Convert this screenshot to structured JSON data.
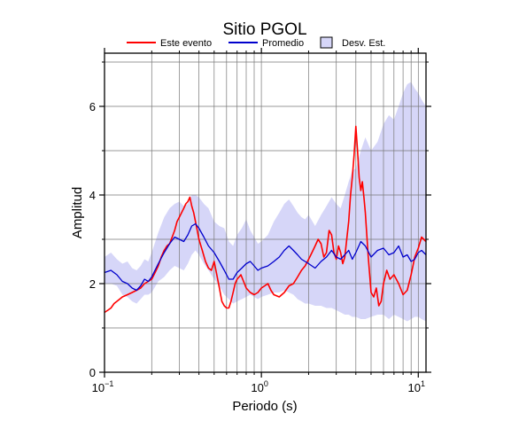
{
  "chart_data": {
    "type": "line",
    "title": "Sitio PGOL",
    "xlabel": "Periodo (s)",
    "ylabel": "Amplitud",
    "x_scale": "log",
    "xlim": [
      0.1,
      11.2
    ],
    "ylim": [
      0,
      7.2
    ],
    "x_ticks": [
      {
        "value": 0.1,
        "base": "10",
        "exp": "−1"
      },
      {
        "value": 1,
        "base": "10",
        "exp": "0"
      },
      {
        "value": 10,
        "base": "10",
        "exp": "1"
      }
    ],
    "y_ticks": [
      {
        "value": 0,
        "label": "0"
      },
      {
        "value": 2,
        "label": "2"
      },
      {
        "value": 4,
        "label": "4"
      },
      {
        "value": 6,
        "label": "6"
      }
    ],
    "grid": true,
    "legend_position": "top",
    "legend": [
      {
        "label": "Este evento",
        "kind": "line",
        "color": "#ff0000"
      },
      {
        "label": "Promedio",
        "kind": "line",
        "color": "#0000cc"
      },
      {
        "label": "Desv. Est.",
        "kind": "band",
        "color": "#d6d6f8"
      }
    ],
    "series": [
      {
        "name": "Este evento",
        "color": "#ff0000",
        "x": [
          0.1,
          0.105,
          0.11,
          0.115,
          0.12,
          0.13,
          0.14,
          0.15,
          0.16,
          0.17,
          0.18,
          0.19,
          0.2,
          0.21,
          0.22,
          0.23,
          0.24,
          0.25,
          0.26,
          0.27,
          0.28,
          0.29,
          0.3,
          0.31,
          0.32,
          0.33,
          0.34,
          0.35,
          0.36,
          0.37,
          0.38,
          0.39,
          0.4,
          0.42,
          0.44,
          0.46,
          0.48,
          0.5,
          0.52,
          0.54,
          0.56,
          0.58,
          0.6,
          0.62,
          0.64,
          0.66,
          0.68,
          0.7,
          0.72,
          0.74,
          0.77,
          0.8,
          0.85,
          0.9,
          0.95,
          1.0,
          1.05,
          1.1,
          1.15,
          1.2,
          1.3,
          1.4,
          1.5,
          1.6,
          1.7,
          1.8,
          1.9,
          2.0,
          2.1,
          2.2,
          2.3,
          2.4,
          2.5,
          2.6,
          2.7,
          2.8,
          2.9,
          3.0,
          3.1,
          3.2,
          3.3,
          3.4,
          3.5,
          3.6,
          3.7,
          3.8,
          3.9,
          4.0,
          4.1,
          4.2,
          4.3,
          4.4,
          4.5,
          4.6,
          4.8,
          5.0,
          5.2,
          5.4,
          5.6,
          5.8,
          6.0,
          6.3,
          6.6,
          7.0,
          7.5,
          8.0,
          8.5,
          9.0,
          9.5,
          10.0,
          10.5,
          11.2
        ],
        "y": [
          1.35,
          1.4,
          1.45,
          1.55,
          1.6,
          1.7,
          1.75,
          1.8,
          1.85,
          1.9,
          2.0,
          2.05,
          2.1,
          2.25,
          2.4,
          2.6,
          2.75,
          2.85,
          2.9,
          3.05,
          3.2,
          3.4,
          3.5,
          3.6,
          3.7,
          3.8,
          3.85,
          3.95,
          3.75,
          3.6,
          3.4,
          3.2,
          3.0,
          2.75,
          2.5,
          2.35,
          2.3,
          2.5,
          2.2,
          1.9,
          1.6,
          1.5,
          1.45,
          1.45,
          1.6,
          1.8,
          2.0,
          2.1,
          2.15,
          2.2,
          2.05,
          1.9,
          1.8,
          1.75,
          1.8,
          1.9,
          1.95,
          2.0,
          1.85,
          1.75,
          1.7,
          1.8,
          1.95,
          2.0,
          2.15,
          2.3,
          2.4,
          2.55,
          2.7,
          2.85,
          3.0,
          2.9,
          2.6,
          2.7,
          3.2,
          3.1,
          2.7,
          2.55,
          2.85,
          2.7,
          2.45,
          2.6,
          3.0,
          3.4,
          4.0,
          4.4,
          4.9,
          5.55,
          5.0,
          4.4,
          4.1,
          4.3,
          3.95,
          3.6,
          2.6,
          1.8,
          1.7,
          1.9,
          1.5,
          1.6,
          2.0,
          2.3,
          2.1,
          2.2,
          2.0,
          1.75,
          1.85,
          2.2,
          2.6,
          2.8,
          3.05,
          2.95
        ]
      },
      {
        "name": "Promedio",
        "color": "#0000cc",
        "x": [
          0.1,
          0.11,
          0.12,
          0.13,
          0.14,
          0.15,
          0.16,
          0.17,
          0.18,
          0.19,
          0.2,
          0.22,
          0.24,
          0.26,
          0.28,
          0.3,
          0.32,
          0.34,
          0.36,
          0.38,
          0.4,
          0.43,
          0.46,
          0.5,
          0.54,
          0.58,
          0.62,
          0.66,
          0.7,
          0.75,
          0.8,
          0.85,
          0.9,
          0.95,
          1.0,
          1.1,
          1.2,
          1.3,
          1.4,
          1.5,
          1.6,
          1.7,
          1.8,
          1.9,
          2.0,
          2.2,
          2.4,
          2.6,
          2.8,
          3.0,
          3.2,
          3.4,
          3.6,
          3.8,
          4.0,
          4.3,
          4.6,
          5.0,
          5.5,
          6.0,
          6.5,
          7.0,
          7.5,
          8.0,
          8.5,
          9.0,
          9.5,
          10.0,
          10.5,
          11.2
        ],
        "y": [
          2.25,
          2.3,
          2.2,
          2.05,
          2.0,
          1.9,
          1.85,
          1.95,
          2.1,
          2.05,
          2.15,
          2.45,
          2.7,
          2.9,
          3.05,
          3.0,
          2.95,
          3.1,
          3.3,
          3.35,
          3.25,
          3.05,
          2.85,
          2.7,
          2.5,
          2.3,
          2.1,
          2.1,
          2.25,
          2.35,
          2.45,
          2.5,
          2.4,
          2.3,
          2.35,
          2.4,
          2.5,
          2.6,
          2.75,
          2.85,
          2.75,
          2.65,
          2.55,
          2.5,
          2.45,
          2.35,
          2.5,
          2.6,
          2.75,
          2.6,
          2.55,
          2.65,
          2.75,
          2.55,
          2.7,
          2.95,
          2.85,
          2.6,
          2.75,
          2.8,
          2.65,
          2.7,
          2.85,
          2.6,
          2.65,
          2.5,
          2.55,
          2.7,
          2.75,
          2.65
        ]
      }
    ],
    "band": {
      "name": "Desv. Est.",
      "color": "#d6d6f8",
      "x": [
        0.1,
        0.11,
        0.12,
        0.13,
        0.14,
        0.15,
        0.16,
        0.17,
        0.18,
        0.19,
        0.2,
        0.22,
        0.24,
        0.26,
        0.28,
        0.3,
        0.32,
        0.34,
        0.36,
        0.38,
        0.4,
        0.43,
        0.46,
        0.5,
        0.54,
        0.58,
        0.62,
        0.66,
        0.7,
        0.75,
        0.8,
        0.85,
        0.9,
        0.95,
        1.0,
        1.1,
        1.2,
        1.3,
        1.4,
        1.5,
        1.6,
        1.7,
        1.8,
        1.9,
        2.0,
        2.2,
        2.4,
        2.6,
        2.8,
        3.0,
        3.2,
        3.4,
        3.6,
        3.8,
        4.0,
        4.3,
        4.6,
        5.0,
        5.5,
        6.0,
        6.5,
        7.0,
        7.5,
        8.0,
        8.5,
        9.0,
        9.5,
        10.0,
        10.5,
        11.2
      ],
      "upper": [
        2.6,
        2.7,
        2.55,
        2.45,
        2.5,
        2.35,
        2.3,
        2.4,
        2.55,
        2.5,
        2.7,
        3.15,
        3.5,
        3.7,
        3.8,
        3.85,
        3.75,
        3.8,
        4.0,
        4.0,
        3.95,
        3.8,
        3.7,
        3.4,
        3.3,
        3.25,
        2.95,
        2.85,
        3.1,
        3.25,
        3.45,
        3.2,
        3.05,
        2.9,
        2.95,
        3.1,
        3.4,
        3.6,
        3.8,
        3.9,
        3.75,
        3.6,
        3.5,
        3.45,
        3.55,
        3.3,
        3.55,
        3.75,
        3.95,
        3.8,
        3.7,
        4.0,
        4.3,
        4.55,
        4.6,
        5.0,
        5.3,
        5.0,
        5.2,
        5.6,
        5.8,
        5.7,
        6.0,
        6.3,
        6.5,
        6.55,
        6.4,
        6.3,
        6.15,
        6.0
      ],
      "lower": [
        2.0,
        2.0,
        1.95,
        1.75,
        1.7,
        1.6,
        1.55,
        1.65,
        1.75,
        1.75,
        1.8,
        2.05,
        2.15,
        2.3,
        2.4,
        2.35,
        2.3,
        2.45,
        2.65,
        2.75,
        2.65,
        2.45,
        2.3,
        2.1,
        1.95,
        1.75,
        1.65,
        1.55,
        1.6,
        1.65,
        1.7,
        1.75,
        1.7,
        1.65,
        1.7,
        1.75,
        1.8,
        1.8,
        1.85,
        1.8,
        1.75,
        1.65,
        1.6,
        1.55,
        1.55,
        1.5,
        1.5,
        1.45,
        1.45,
        1.4,
        1.35,
        1.3,
        1.3,
        1.25,
        1.25,
        1.2,
        1.2,
        1.25,
        1.3,
        1.3,
        1.2,
        1.3,
        1.25,
        1.2,
        1.15,
        1.2,
        1.25,
        1.25,
        1.2,
        1.15
      ]
    }
  }
}
